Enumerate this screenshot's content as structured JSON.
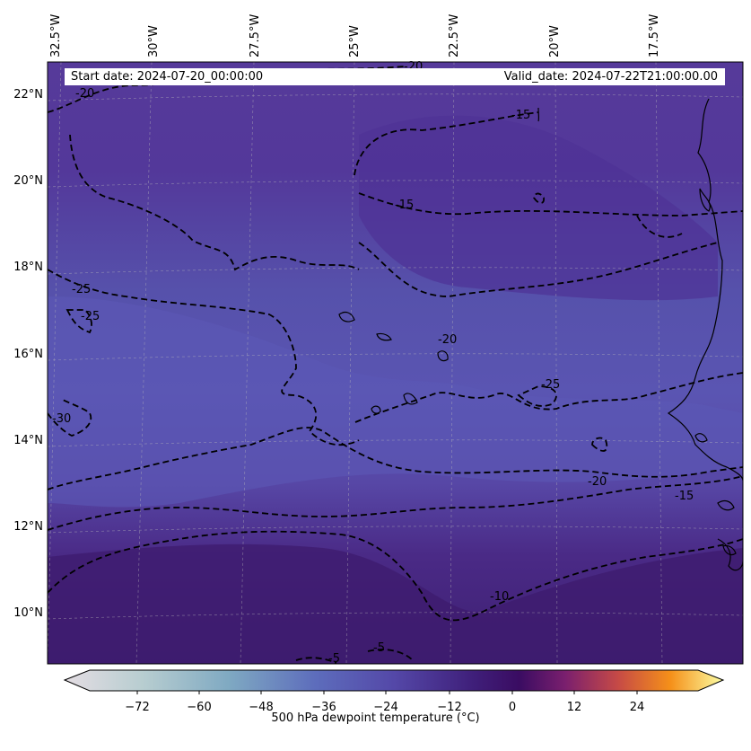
{
  "map": {
    "lon_labels": [
      "32.5°W",
      "30°W",
      "27.5°W",
      "25°W",
      "22.5°W",
      "20°W",
      "17.5°W"
    ],
    "lat_labels": [
      "22°N",
      "20°N",
      "18°N",
      "16°N",
      "14°N",
      "12°N",
      "10°N"
    ],
    "start_date": "Start date: 2024-07-20_00:00:00",
    "valid_date": "Valid_date: 2024-07-22T21:00:00.00",
    "contour_labels": [
      "-20",
      "-20",
      "-15",
      "-15",
      "-25",
      "-25",
      "-20",
      "-25",
      "-30",
      "-20",
      "-15",
      "-10",
      "-5",
      "-5"
    ],
    "colors": {
      "background_purple": "#5a3fa0",
      "dark_purple": "#3e1f72",
      "blue_purple": "#5d58b4"
    }
  },
  "colorbar": {
    "label": "500 hPa dewpoint temperature (°C)",
    "ticks": [
      "−72",
      "−60",
      "−48",
      "−36",
      "−24",
      "−12",
      "0",
      "12",
      "24"
    ],
    "colors": [
      "#e4dde3",
      "#a9c8c5",
      "#6f8fbb",
      "#5d58b4",
      "#4a2a86",
      "#3b0f6e",
      "#7a1f6e",
      "#c64a46",
      "#f48a1b",
      "#fbe87b",
      "#fcfea4"
    ]
  }
}
